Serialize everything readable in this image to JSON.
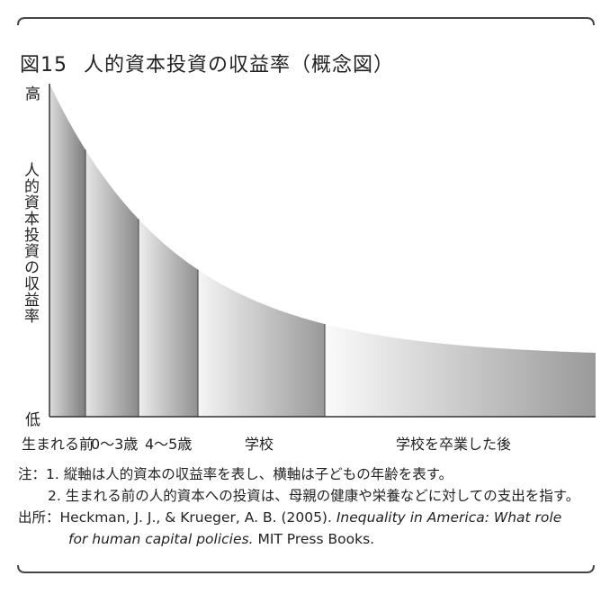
{
  "title": {
    "figure": "図15",
    "text": "人的資本投資の収益率（概念図）"
  },
  "chart_data": {
    "type": "area",
    "title": "人的資本投資の収益率（概念図）",
    "ylabel": "人的資本投資の収益率",
    "y_high_label": "高",
    "y_low_label": "低",
    "categories": [
      "生まれる前",
      "0〜3歳",
      "4〜5歳",
      "学校",
      "学校を卒業した後"
    ],
    "curve_shape": "decreasing-convex",
    "grid": false,
    "legend": "none"
  },
  "notes": {
    "prefix": "注：",
    "note1": "1. 縦軸は人的資本の収益率を表し、横軸は子どもの年齢を表す。",
    "note2": "2. 生まれる前の人的資本への投資は、母親の健康や栄養などに対しての支出を指す。"
  },
  "source": {
    "prefix": "出所：",
    "authors": "Heckman, J. J., & Krueger, A. B. (2005).",
    "book_title_1": "Inequality in America: What role",
    "book_title_2": "for human capital policies.",
    "publisher": "MIT Press Books."
  }
}
